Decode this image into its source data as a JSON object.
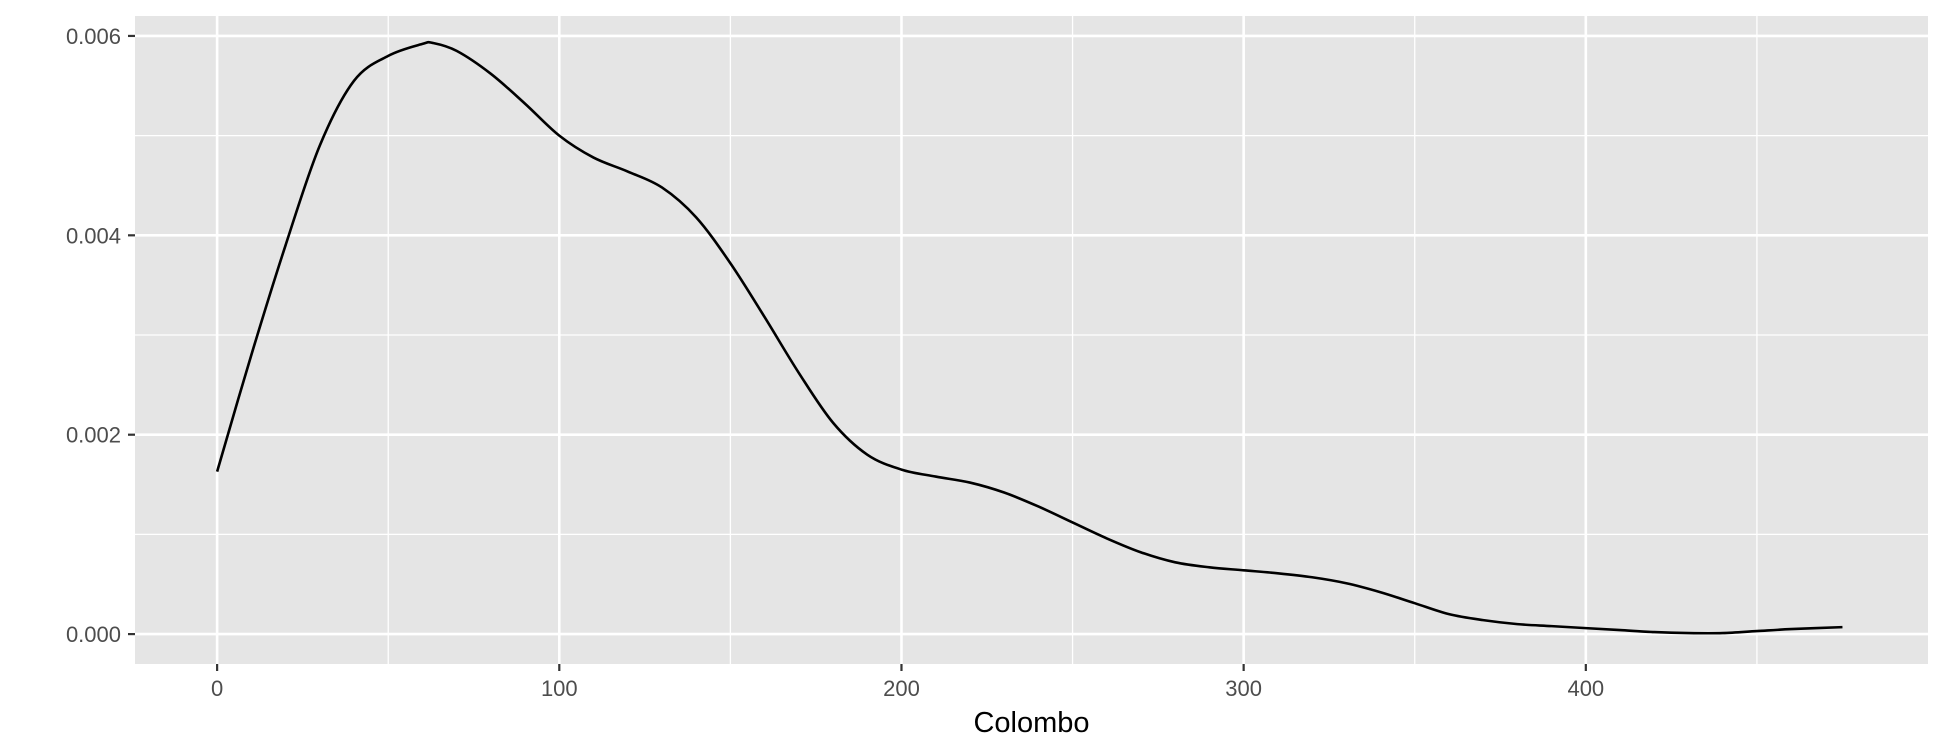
{
  "chart_data": {
    "type": "line",
    "title": "",
    "xlabel": "Colombo",
    "ylabel": "",
    "xlim": [
      -24,
      500
    ],
    "ylim": [
      -0.0003,
      0.0062
    ],
    "x_ticks": [
      0,
      100,
      200,
      300,
      400
    ],
    "x_tick_labels": [
      "0",
      "100",
      "200",
      "300",
      "400"
    ],
    "y_ticks": [
      0,
      0.002,
      0.004,
      0.006
    ],
    "y_tick_labels": [
      "0.000",
      "0.002",
      "0.004",
      "0.006"
    ],
    "grid": true,
    "series": [
      {
        "color": "#000000",
        "x": [
          0,
          10,
          20,
          30,
          40,
          50,
          60,
          63,
          70,
          80,
          90,
          100,
          110,
          120,
          130,
          140,
          150,
          160,
          170,
          180,
          190,
          200,
          210,
          220,
          230,
          240,
          250,
          260,
          270,
          280,
          290,
          300,
          310,
          320,
          330,
          340,
          350,
          360,
          370,
          380,
          390,
          400,
          410,
          420,
          430,
          440,
          450,
          460,
          475
        ],
        "y": [
          0.00163,
          0.0028,
          0.0039,
          0.0049,
          0.00555,
          0.0058,
          0.00592,
          0.00593,
          0.00585,
          0.00562,
          0.00532,
          0.005,
          0.00478,
          0.00464,
          0.00448,
          0.00418,
          0.00372,
          0.00318,
          0.00262,
          0.00212,
          0.0018,
          0.00165,
          0.00158,
          0.00152,
          0.00142,
          0.00128,
          0.00112,
          0.00096,
          0.00082,
          0.00072,
          0.00067,
          0.00064,
          0.00061,
          0.00057,
          0.00051,
          0.00042,
          0.00031,
          0.0002,
          0.00014,
          0.0001,
          8e-05,
          6e-05,
          4e-05,
          2e-05,
          1e-05,
          1e-05,
          3e-05,
          5e-05,
          7e-05
        ]
      }
    ]
  },
  "colors": {
    "panel_background": "#e5e5e5",
    "grid_line": "#ffffff",
    "line": "#000000",
    "tick_text": "#4d4d4d",
    "axis_title": "#000000"
  }
}
